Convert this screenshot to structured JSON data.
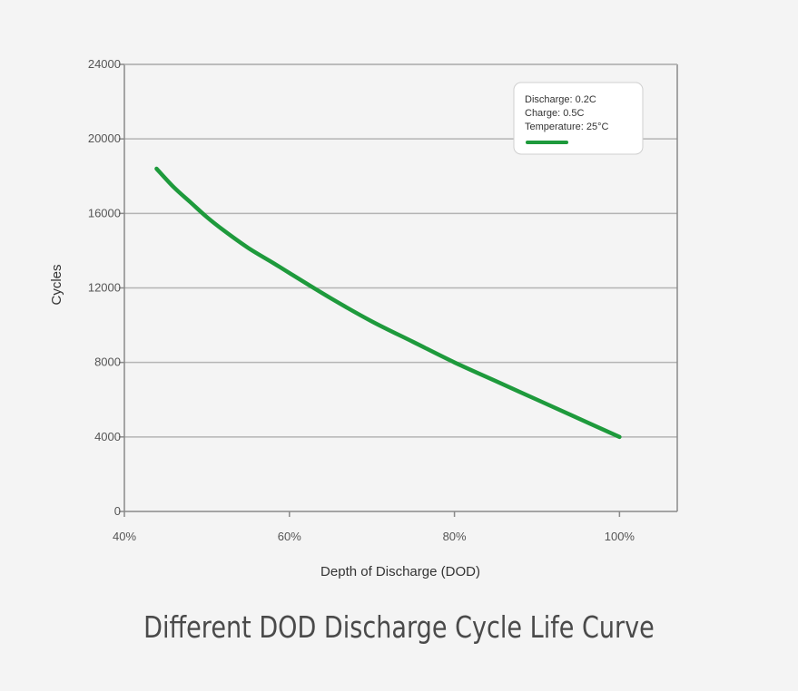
{
  "caption": "Different DOD Discharge Cycle Life Curve",
  "colors": {
    "background": "#f4f4f4",
    "curve": "#1e9a3c",
    "grid": "#b4b4b4",
    "axis": "#8a8a8a"
  },
  "chart_data": {
    "type": "line",
    "title": "",
    "xlabel": "Depth of Discharge (DOD)",
    "ylabel": "Cycles",
    "xlim": [
      40,
      107
    ],
    "ylim": [
      0,
      24000
    ],
    "xticks": [
      40,
      60,
      80,
      100
    ],
    "xtick_labels": [
      "40%",
      "60%",
      "80%",
      "100%"
    ],
    "yticks": [
      0,
      4000,
      8000,
      12000,
      16000,
      20000,
      24000
    ],
    "ytick_labels": [
      "0",
      "4000",
      "8000",
      "12000",
      "16000",
      "20000",
      "24000"
    ],
    "grid": true,
    "legend": {
      "placement": "top-right",
      "lines": [
        "Discharge:  0.2C",
        "Charge:  0.5C",
        "Temperature: 25°C"
      ]
    },
    "series": [
      {
        "name": "Discharge 0.2C / Charge 0.5C / 25°C",
        "x": [
          43.9,
          46,
          48,
          50,
          52,
          55,
          58,
          60,
          65,
          70,
          75,
          80,
          85,
          90,
          95,
          100
        ],
        "y": [
          18400,
          17400,
          16600,
          15800,
          15100,
          14150,
          13350,
          12800,
          11450,
          10200,
          9100,
          8000,
          7000,
          6000,
          5000,
          4000
        ]
      }
    ]
  }
}
